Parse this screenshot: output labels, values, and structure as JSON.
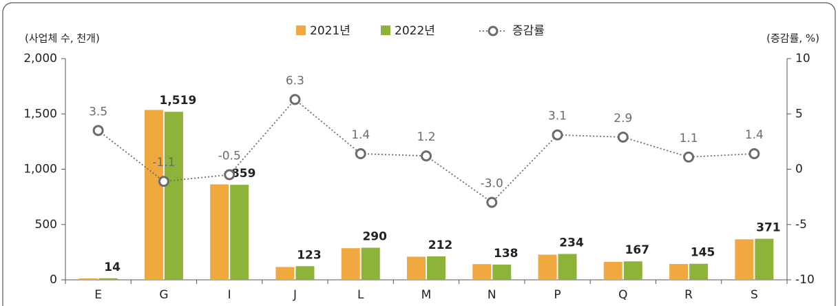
{
  "chart_data": {
    "type": "bar_line",
    "y_label": "(사업체 수, 천개)",
    "y2_label": "(증감률, %)",
    "categories": [
      "E",
      "G",
      "I",
      "J",
      "L",
      "M",
      "N",
      "P",
      "Q",
      "R",
      "S"
    ],
    "series": [
      {
        "name": "2021년",
        "color": "#f0a93e",
        "type": "bar",
        "values": [
          13,
          1536,
          863,
          116,
          286,
          209,
          142,
          227,
          162,
          143,
          366
        ]
      },
      {
        "name": "2022년",
        "color": "#8db33a",
        "type": "bar",
        "values": [
          14,
          1519,
          859,
          123,
          290,
          212,
          138,
          234,
          167,
          145,
          371
        ],
        "value_labels": [
          "14",
          "1,519",
          "859",
          "123",
          "290",
          "212",
          "138",
          "234",
          "167",
          "145",
          "371"
        ]
      },
      {
        "name": "증감률",
        "color": "#6b6b6b",
        "type": "line",
        "axis": "y2",
        "values": [
          3.5,
          -1.1,
          -0.5,
          6.3,
          1.4,
          1.2,
          -3.0,
          3.1,
          2.9,
          1.1,
          1.4
        ],
        "value_labels": [
          "3.5",
          "-1.1",
          "-0.5",
          "6.3",
          "1.4",
          "1.2",
          "-3.0",
          "3.1",
          "2.9",
          "1.1",
          "1.4"
        ]
      }
    ],
    "ylim": [
      0,
      2000
    ],
    "yticks": [
      0,
      500,
      {
        "value": 1000,
        "label": "1,000"
      },
      {
        "value": 1500,
        "label": "1,500"
      },
      {
        "value": 2000,
        "label": "2,000"
      }
    ],
    "y2lim": [
      -10,
      10
    ],
    "y2ticks": [
      -10,
      -5,
      0,
      5,
      10
    ],
    "grid": false,
    "legend": "top"
  }
}
